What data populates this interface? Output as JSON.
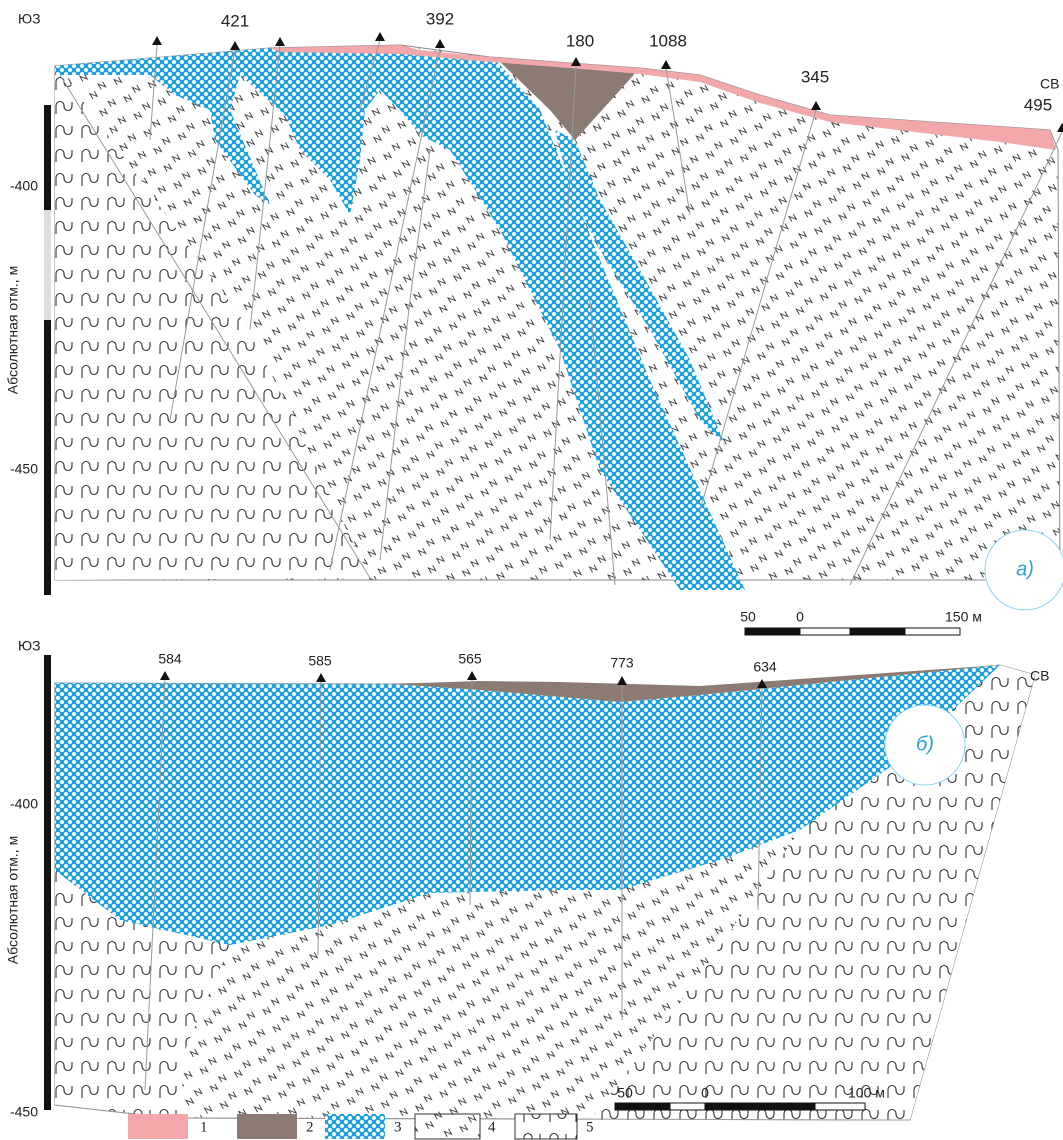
{
  "panel_a": {
    "sw": "ЮЗ",
    "ne": "СВ",
    "axis_label": "Абсолютная отм., м",
    "ticks": [
      "-400",
      "-450"
    ],
    "boreholes": [
      "421",
      "392",
      "180",
      "1088",
      "345",
      "495"
    ],
    "label": "а)",
    "scale": [
      "50",
      "0",
      "150 м"
    ]
  },
  "panel_b": {
    "sw": "ЮЗ",
    "ne": "СВ",
    "axis_label": "Абсолютная отм., м",
    "ticks": [
      "-400",
      "-450"
    ],
    "boreholes": [
      "584",
      "585",
      "565",
      "773",
      "634"
    ],
    "label": "б)",
    "scale": [
      "50",
      "0",
      "100 м"
    ]
  },
  "legend": [
    "1",
    "2",
    "3",
    "4",
    "5"
  ]
}
